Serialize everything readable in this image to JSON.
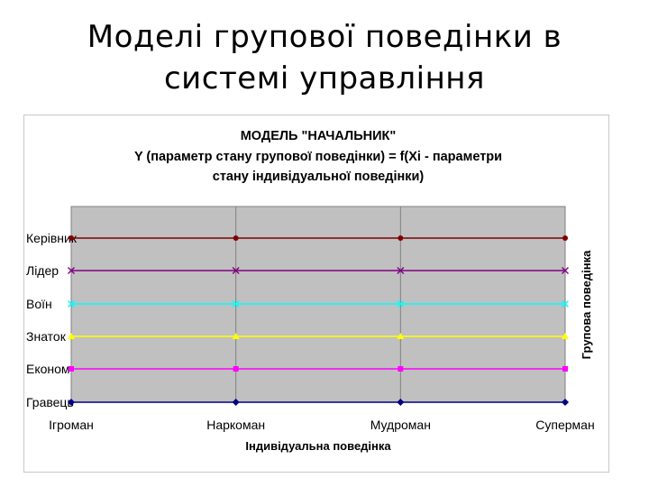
{
  "slide": {
    "title_line1": "Моделі групової поведінки в",
    "title_line2": "системі управління"
  },
  "chart_data": {
    "type": "line",
    "title_lines": [
      "МОДЕЛЬ \"НАЧАЛЬНИК\"",
      "Y (параметр стану групової поведінки) = f(Xi - параметри",
      "стану індивідуальної поведінки)"
    ],
    "xlabel": "Індивідуальна поведінка",
    "ylabel": "Групова поведінка",
    "categories": [
      "Ігроман",
      "Наркоман",
      "Мудроман",
      "Суперман"
    ],
    "y_categories": [
      "Гравець",
      "Економ",
      "Знаток",
      "Воїн",
      "Лідер",
      "Керівник"
    ],
    "grid": true,
    "plot_background": "#c0c0c0",
    "series": [
      {
        "y_level": "Керівник",
        "values": [
          "Керівник",
          "Керівник",
          "Керівник",
          "Керівник"
        ],
        "color": "#800000",
        "marker": "circle"
      },
      {
        "y_level": "Лідер",
        "values": [
          "Лідер",
          "Лідер",
          "Лідер",
          "Лідер"
        ],
        "color": "#800080",
        "marker": "x"
      },
      {
        "y_level": "Воїн",
        "values": [
          "Воїн",
          "Воїн",
          "Воїн",
          "Воїн"
        ],
        "color": "#00ffff",
        "marker": "x"
      },
      {
        "y_level": "Знаток",
        "values": [
          "Знаток",
          "Знаток",
          "Знаток",
          "Знаток"
        ],
        "color": "#ffff00",
        "marker": "triangle"
      },
      {
        "y_level": "Економ",
        "values": [
          "Економ",
          "Економ",
          "Економ",
          "Економ"
        ],
        "color": "#ff00ff",
        "marker": "square"
      },
      {
        "y_level": "Гравець",
        "values": [
          "Гравець",
          "Гравець",
          "Гравець",
          "Гравець"
        ],
        "color": "#000080",
        "marker": "diamond"
      }
    ]
  }
}
